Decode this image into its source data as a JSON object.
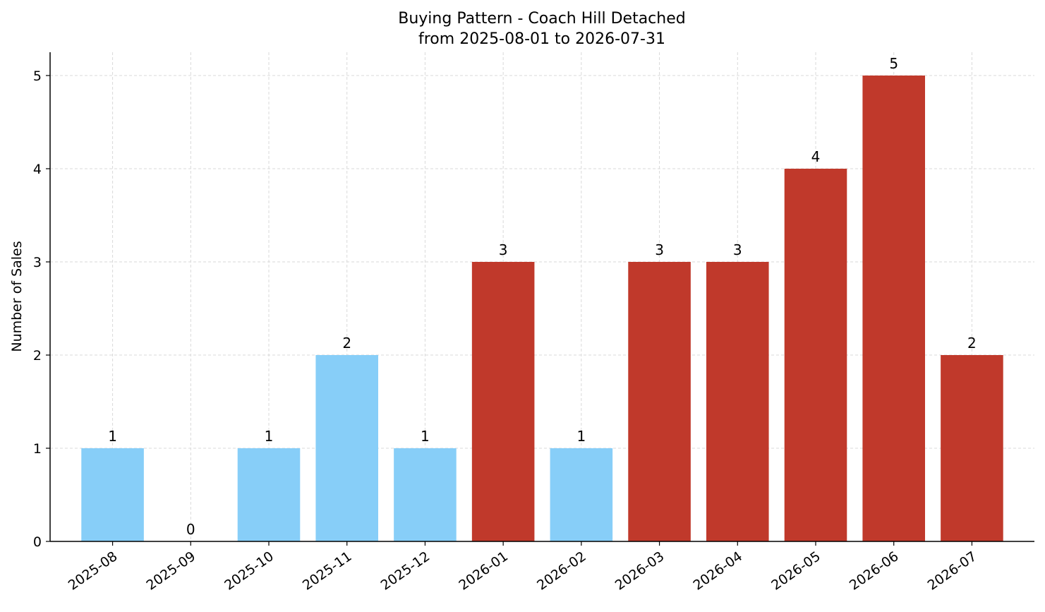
{
  "chart_data": {
    "type": "bar",
    "title": "Buying Pattern - Coach Hill Detached",
    "subtitle": "from 2025-08-01 to 2026-07-31",
    "xlabel": "",
    "ylabel": "Number of Sales",
    "categories": [
      "2025-08",
      "2025-09",
      "2025-10",
      "2025-11",
      "2025-12",
      "2026-01",
      "2026-02",
      "2026-03",
      "2026-04",
      "2026-05",
      "2026-06",
      "2026-07"
    ],
    "values": [
      1,
      0,
      1,
      2,
      1,
      3,
      1,
      3,
      3,
      4,
      5,
      2
    ],
    "bar_colors": [
      "#87cef8",
      "#87cef8",
      "#87cef8",
      "#87cef8",
      "#87cef8",
      "#c0392b",
      "#87cef8",
      "#c0392b",
      "#c0392b",
      "#c0392b",
      "#c0392b",
      "#c0392b"
    ],
    "ylim": [
      0,
      5.25
    ],
    "yticks": [
      0,
      1,
      2,
      3,
      4,
      5
    ],
    "grid": true,
    "grid_color": "#d9d9d9",
    "legend": "none"
  }
}
